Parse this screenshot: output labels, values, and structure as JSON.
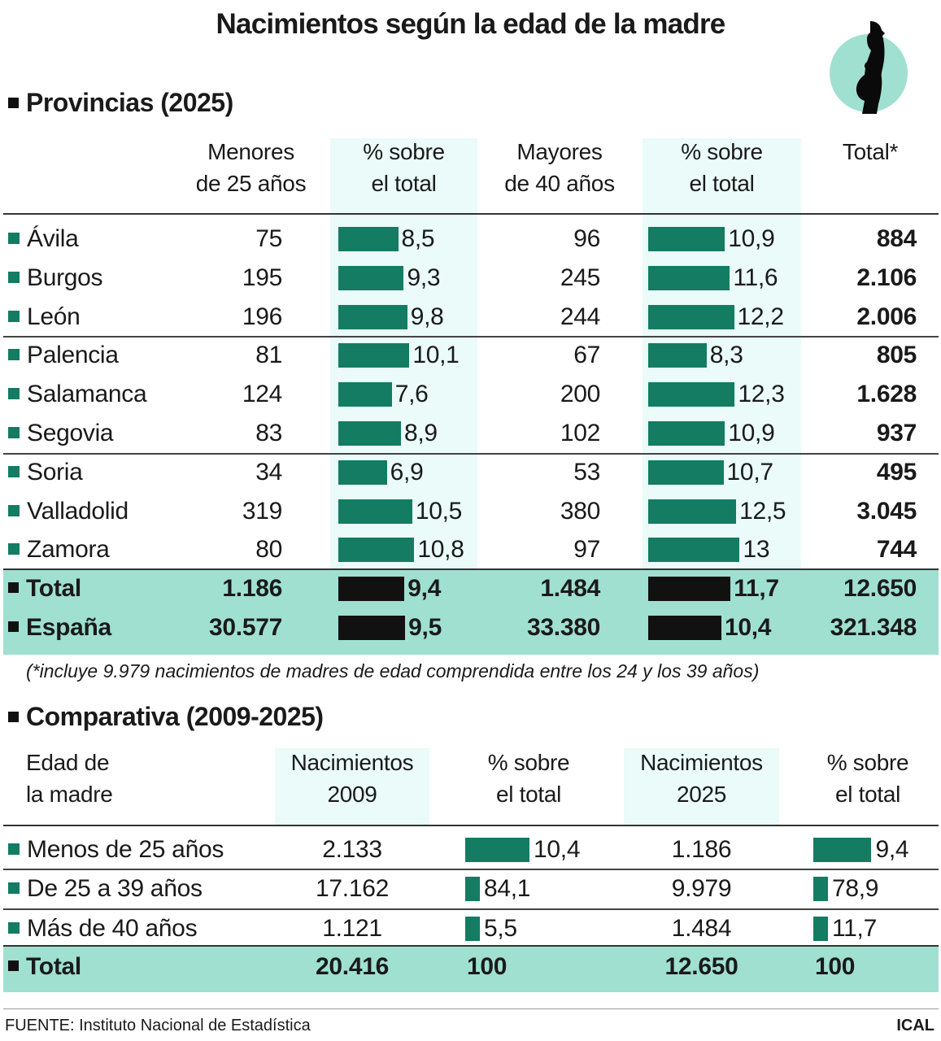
{
  "title": "Nacimientos según la edad de la madre",
  "icon": "pregnant-woman-silhouette-icon",
  "colors": {
    "bar": "#137c63",
    "total_bar": "#111111",
    "highlight": "#9fe0d1",
    "column_shade": "#eafbf9"
  },
  "chart_data": [
    {
      "type": "table",
      "title": "Provincias (2025)",
      "columns": [
        "",
        "Menores de 25 años",
        "% sobre el total",
        "Mayores de 40 años",
        "% sobre el total",
        "Total*"
      ],
      "header_lines": [
        [
          "Menores",
          "de 25 años"
        ],
        [
          "% sobre",
          "el total"
        ],
        [
          "Mayores",
          "de 40 años"
        ],
        [
          "% sobre",
          "el total"
        ],
        [
          "Total*",
          ""
        ]
      ],
      "rows": [
        {
          "name": "Ávila",
          "under25": "75",
          "pct_under25": 8.5,
          "pct_under25_label": "8,5",
          "over40": "96",
          "pct_over40": 10.9,
          "pct_over40_label": "10,9",
          "total": "884"
        },
        {
          "name": "Burgos",
          "under25": "195",
          "pct_under25": 9.3,
          "pct_under25_label": "9,3",
          "over40": "245",
          "pct_over40": 11.6,
          "pct_over40_label": "11,6",
          "total": "2.106"
        },
        {
          "name": "León",
          "under25": "196",
          "pct_under25": 9.8,
          "pct_under25_label": "9,8",
          "over40": "244",
          "pct_over40": 12.2,
          "pct_over40_label": "12,2",
          "total": "2.006"
        },
        {
          "name": "Palencia",
          "under25": "81",
          "pct_under25": 10.1,
          "pct_under25_label": "10,1",
          "over40": "67",
          "pct_over40": 8.3,
          "pct_over40_label": "8,3",
          "total": "805"
        },
        {
          "name": "Salamanca",
          "under25": "124",
          "pct_under25": 7.6,
          "pct_under25_label": "7,6",
          "over40": "200",
          "pct_over40": 12.3,
          "pct_over40_label": "12,3",
          "total": "1.628"
        },
        {
          "name": "Segovia",
          "under25": "83",
          "pct_under25": 8.9,
          "pct_under25_label": "8,9",
          "over40": "102",
          "pct_over40": 10.9,
          "pct_over40_label": "10,9",
          "total": "937"
        },
        {
          "name": "Soria",
          "under25": "34",
          "pct_under25": 6.9,
          "pct_under25_label": "6,9",
          "over40": "53",
          "pct_over40": 10.7,
          "pct_over40_label": "10,7",
          "total": "495"
        },
        {
          "name": "Valladolid",
          "under25": "319",
          "pct_under25": 10.5,
          "pct_under25_label": "10,5",
          "over40": "380",
          "pct_over40": 12.5,
          "pct_over40_label": "12,5",
          "total": "3.045"
        },
        {
          "name": "Zamora",
          "under25": "80",
          "pct_under25": 10.8,
          "pct_under25_label": "10,8",
          "over40": "97",
          "pct_over40": 13,
          "pct_over40_label": "13",
          "total": "744"
        }
      ],
      "totals": [
        {
          "name": "Total",
          "under25": "1.186",
          "pct_under25": 9.4,
          "pct_under25_label": "9,4",
          "over40": "1.484",
          "pct_over40": 11.7,
          "pct_over40_label": "11,7",
          "total": "12.650"
        },
        {
          "name": "España",
          "under25": "30.577",
          "pct_under25": 9.5,
          "pct_under25_label": "9,5",
          "over40": "33.380",
          "pct_over40": 10.4,
          "pct_over40_label": "10,4",
          "total": "321.348"
        }
      ],
      "footnote": "(*incluye 9.979 nacimientos de madres de edad comprendida entre los 24 y los 39 años)"
    },
    {
      "type": "table",
      "title": "Comparativa (2009-2025)",
      "header_lines": [
        [
          "Edad de",
          "la madre"
        ],
        [
          "Nacimientos",
          "2009"
        ],
        [
          "% sobre",
          "el total"
        ],
        [
          "Nacimientos",
          "2025"
        ],
        [
          "% sobre",
          "el total"
        ]
      ],
      "rows": [
        {
          "name": "Menos de 25 años",
          "births2009": "2.133",
          "pct2009": 10.4,
          "pct2009_label": "10,4",
          "births2025": "1.186",
          "pct2025": 9.4,
          "pct2025_label": "9,4"
        },
        {
          "name": "De 25 a 39 años",
          "births2009": "17.162",
          "pct2009": 84.1,
          "pct2009_label": "84,1",
          "births2025": "9.979",
          "pct2025": 78.9,
          "pct2025_label": "78,9"
        },
        {
          "name": "Más de 40 años",
          "births2009": "1.121",
          "pct2009": 5.5,
          "pct2009_label": "5,5",
          "births2025": "1.484",
          "pct2025": 11.7,
          "pct2025_label": "11,7"
        }
      ],
      "total": {
        "name": "Total",
        "births2009": "20.416",
        "pct2009_label": "100",
        "births2025": "12.650",
        "pct2025_label": "100"
      }
    }
  ],
  "source": "FUENTE: Instituto Nacional de Estadística",
  "credit": "ICAL"
}
